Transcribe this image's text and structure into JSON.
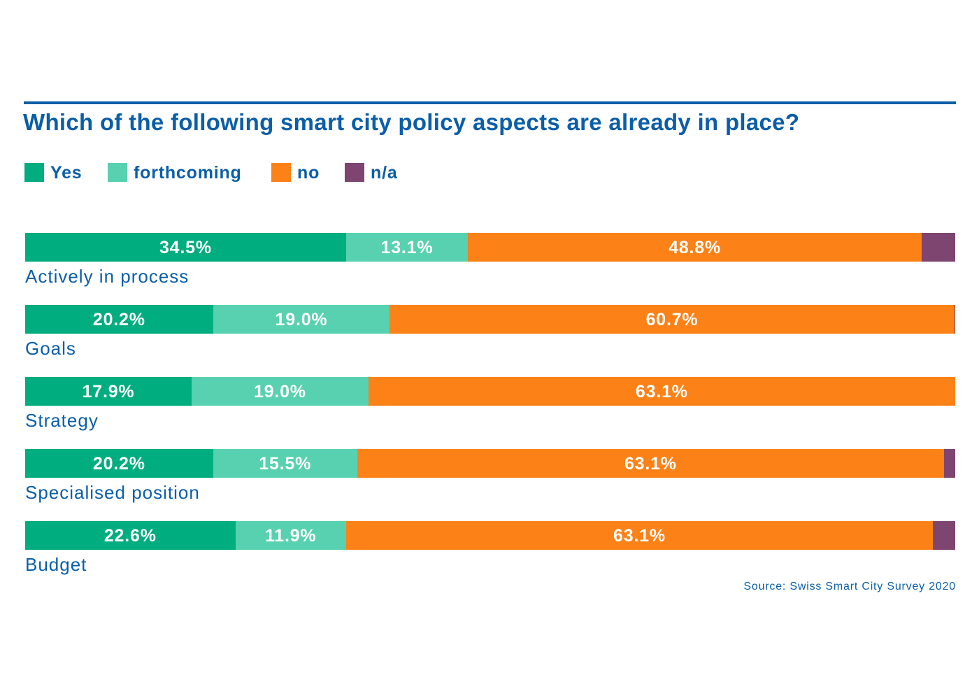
{
  "colors": {
    "title": "#0b5ea8",
    "yes": "#00ad7f",
    "forthcoming": "#57d1b0",
    "no": "#fc8116",
    "na": "#7e4570"
  },
  "chart_data": {
    "type": "bar",
    "orientation": "horizontal",
    "stacked": true,
    "title": "Which of the following smart city policy aspects are already in place?",
    "legend_position": "top-left",
    "categories": [
      "Actively in process",
      "Goals",
      "Strategy",
      "Specialised position",
      "Budget"
    ],
    "series": [
      {
        "name": "Yes",
        "color": "#00ad7f",
        "values": [
          34.5,
          20.2,
          17.9,
          20.2,
          22.6
        ],
        "labels": [
          "34.5%",
          "20.2%",
          "17.9%",
          "20.2%",
          "22.6%"
        ]
      },
      {
        "name": "forthcoming",
        "color": "#57d1b0",
        "values": [
          13.1,
          19.0,
          19.0,
          15.5,
          11.9
        ],
        "labels": [
          "13.1%",
          "19.0%",
          "19.0%",
          "15.5%",
          "11.9%"
        ]
      },
      {
        "name": "no",
        "color": "#fc8116",
        "values": [
          48.8,
          60.7,
          63.1,
          63.1,
          63.1
        ],
        "labels": [
          "48.8%",
          "60.7%",
          "63.1%",
          "63.1%",
          "63.1%"
        ]
      },
      {
        "name": "n/a",
        "color": "#7e4570",
        "values": [
          3.6,
          0.1,
          0.0,
          1.2,
          2.4
        ],
        "labels": [
          "",
          "",
          "",
          "",
          ""
        ]
      }
    ],
    "xlim": [
      0,
      100
    ],
    "grid": false,
    "source": "Source: Swiss Smart City Survey 2020"
  }
}
